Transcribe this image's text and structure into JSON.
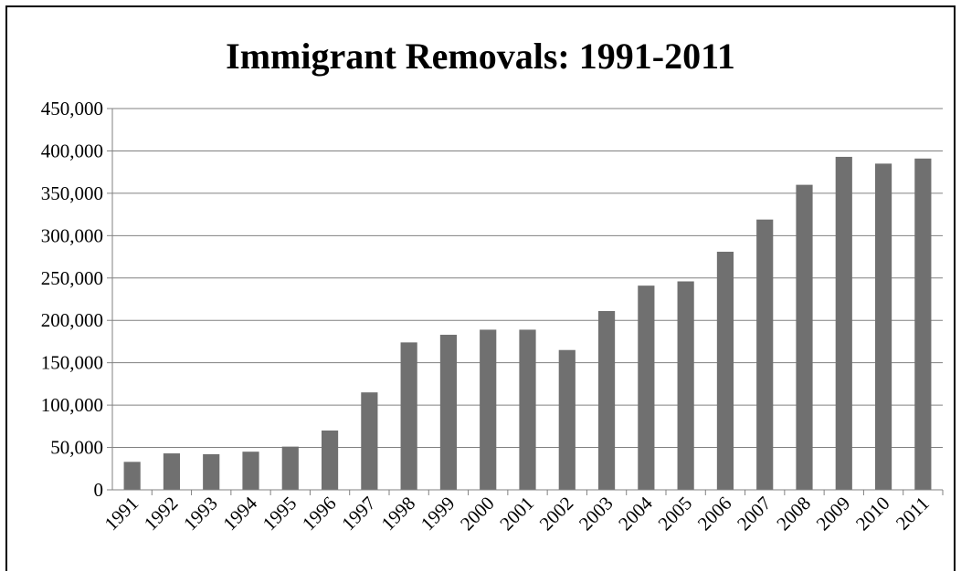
{
  "chart_data": {
    "type": "bar",
    "title": "Immigrant Removals: 1991-2011",
    "xlabel": "",
    "ylabel": "",
    "categories": [
      "1991",
      "1992",
      "1993",
      "1994",
      "1995",
      "1996",
      "1997",
      "1998",
      "1999",
      "2000",
      "2001",
      "2002",
      "2003",
      "2004",
      "2005",
      "2006",
      "2007",
      "2008",
      "2009",
      "2010",
      "2011"
    ],
    "values": [
      33000,
      43000,
      42000,
      45000,
      51000,
      70000,
      115000,
      174000,
      183000,
      189000,
      189000,
      165000,
      211000,
      241000,
      246000,
      281000,
      319000,
      360000,
      393000,
      385000,
      391000
    ],
    "ylim": [
      0,
      450000
    ],
    "yticks": [
      0,
      50000,
      100000,
      150000,
      200000,
      250000,
      300000,
      350000,
      400000,
      450000
    ],
    "ytick_labels": [
      "0",
      "50,000",
      "100,000",
      "150,000",
      "200,000",
      "250,000",
      "300,000",
      "350,000",
      "400,000",
      "450,000"
    ],
    "grid": true,
    "bar_color": "#707070",
    "grid_color": "#808080"
  }
}
